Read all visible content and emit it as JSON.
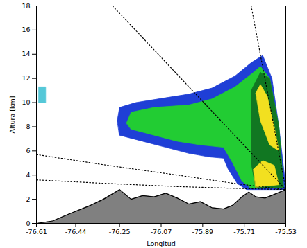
{
  "chart_data": {
    "type": "contour",
    "xlabel": "Longitud",
    "ylabel": "Altura [km]",
    "xlim": [
      -76.61,
      -75.53
    ],
    "ylim": [
      0,
      18
    ],
    "xticks": [
      -76.61,
      -76.44,
      -76.25,
      -76.07,
      -75.89,
      -75.71,
      -75.53
    ],
    "yticks": [
      0,
      2,
      4,
      6,
      8,
      10,
      12,
      14,
      16,
      18
    ],
    "grid": false,
    "regions": [
      {
        "color": "#1f3fd6",
        "points": [
          [
            -76.26,
            8.5
          ],
          [
            -76.25,
            9.6
          ],
          [
            -76.18,
            10
          ],
          [
            -76.05,
            10.4
          ],
          [
            -75.95,
            10.7
          ],
          [
            -75.85,
            11.2
          ],
          [
            -75.75,
            12.2
          ],
          [
            -75.68,
            13.3
          ],
          [
            -75.63,
            13.9
          ],
          [
            -75.59,
            12
          ],
          [
            -75.56,
            8
          ],
          [
            -75.53,
            3
          ],
          [
            -75.53,
            2.8
          ],
          [
            -75.7,
            2.8
          ],
          [
            -75.74,
            3.3
          ],
          [
            -75.78,
            4.5
          ],
          [
            -75.8,
            5.4
          ],
          [
            -75.86,
            5.5
          ],
          [
            -75.95,
            5.8
          ],
          [
            -76.05,
            6.3
          ],
          [
            -76.15,
            6.8
          ],
          [
            -76.25,
            7.3
          ]
        ]
      },
      {
        "color": "#22cc33",
        "points": [
          [
            -76.22,
            8.3
          ],
          [
            -76.2,
            9.2
          ],
          [
            -76.1,
            9.6
          ],
          [
            -75.95,
            9.8
          ],
          [
            -75.85,
            10.3
          ],
          [
            -75.75,
            11.3
          ],
          [
            -75.67,
            12.5
          ],
          [
            -75.64,
            13
          ],
          [
            -75.6,
            12
          ],
          [
            -75.56,
            8
          ],
          [
            -75.54,
            3
          ],
          [
            -75.68,
            2.9
          ],
          [
            -75.72,
            3.5
          ],
          [
            -75.76,
            5
          ],
          [
            -75.8,
            6.3
          ],
          [
            -75.9,
            6.5
          ],
          [
            -76.0,
            6.8
          ],
          [
            -76.1,
            7.3
          ],
          [
            -76.2,
            7.8
          ]
        ]
      },
      {
        "color": "#117722",
        "points": [
          [
            -75.68,
            11
          ],
          [
            -75.64,
            12.5
          ],
          [
            -75.6,
            12
          ],
          [
            -75.56,
            8
          ],
          [
            -75.54,
            3
          ],
          [
            -75.66,
            2.9
          ],
          [
            -75.68,
            5
          ]
        ]
      },
      {
        "color": "#f2e020",
        "points": [
          [
            -75.66,
            10.8
          ],
          [
            -75.64,
            11.5
          ],
          [
            -75.61,
            10.5
          ],
          [
            -75.58,
            8
          ],
          [
            -75.56,
            6
          ],
          [
            -75.6,
            6.5
          ],
          [
            -75.64,
            8.5
          ]
        ]
      },
      {
        "color": "#f2e020",
        "points": [
          [
            -75.67,
            4.5
          ],
          [
            -75.63,
            5.2
          ],
          [
            -75.58,
            4.8
          ],
          [
            -75.56,
            3.2
          ],
          [
            -75.66,
            3.0
          ]
        ]
      },
      {
        "color": "#55c8d8",
        "points": [
          [
            -76.6,
            10
          ],
          [
            -76.57,
            10
          ],
          [
            -76.57,
            11.3
          ],
          [
            -76.6,
            11.3
          ]
        ]
      }
    ],
    "terrain": {
      "color": "#808080",
      "x": [
        -76.61,
        -76.54,
        -76.466,
        -76.375,
        -76.32,
        -76.25,
        -76.2,
        -76.15,
        -76.1,
        -76.05,
        -76.0,
        -75.95,
        -75.9,
        -75.85,
        -75.8,
        -75.76,
        -75.72,
        -75.69,
        -75.66,
        -75.62,
        -75.58,
        -75.53
      ],
      "values": [
        0,
        0.2,
        0.8,
        1.5,
        2.0,
        2.8,
        2.0,
        2.3,
        2.2,
        2.5,
        2.1,
        1.6,
        1.8,
        1.3,
        1.2,
        1.5,
        2.2,
        2.6,
        2.2,
        2.1,
        2.4,
        2.8
      ]
    },
    "lines": [
      {
        "points": [
          [
            -76.28,
            18
          ],
          [
            -75.53,
            2.8
          ]
        ]
      },
      {
        "points": [
          [
            -75.68,
            18
          ],
          [
            -75.53,
            2.8
          ]
        ]
      },
      {
        "points": [
          [
            -76.61,
            5.7
          ],
          [
            -76.3,
            4.8
          ],
          [
            -76.0,
            4.0
          ],
          [
            -75.75,
            3.3
          ],
          [
            -75.53,
            2.8
          ]
        ]
      },
      {
        "points": [
          [
            -76.61,
            3.6
          ],
          [
            -76.3,
            3.3
          ],
          [
            -76.0,
            3.05
          ],
          [
            -75.75,
            2.9
          ],
          [
            -75.53,
            2.8
          ]
        ]
      }
    ],
    "line_style": "dotted"
  }
}
